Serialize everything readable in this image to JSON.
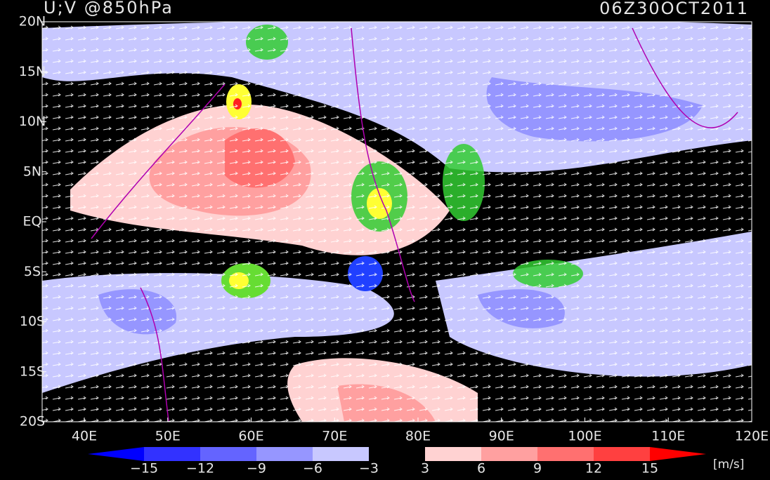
{
  "header": {
    "title": "U;V @850hPa",
    "time": "06Z30OCT2011"
  },
  "map": {
    "lat_labels": [
      "20N",
      "15N",
      "10N",
      "5N",
      "EQ",
      "5S",
      "10S",
      "15S",
      "20S"
    ],
    "lon_labels": [
      "40E",
      "50E",
      "60E",
      "70E",
      "80E",
      "90E",
      "100E",
      "110E",
      "120E"
    ]
  },
  "colorbar": {
    "labels": [
      "−15",
      "−12",
      "−9",
      "−6",
      "−3",
      "3",
      "6",
      "9",
      "12",
      "15"
    ],
    "colors": [
      "#0000ff",
      "#3232ff",
      "#6464ff",
      "#9696ff",
      "#c8c8ff",
      "#000000",
      "#ffd2d2",
      "#ffa0a0",
      "#ff7070",
      "#ff4040",
      "#ff0000"
    ],
    "unit": "[m/s]"
  }
}
